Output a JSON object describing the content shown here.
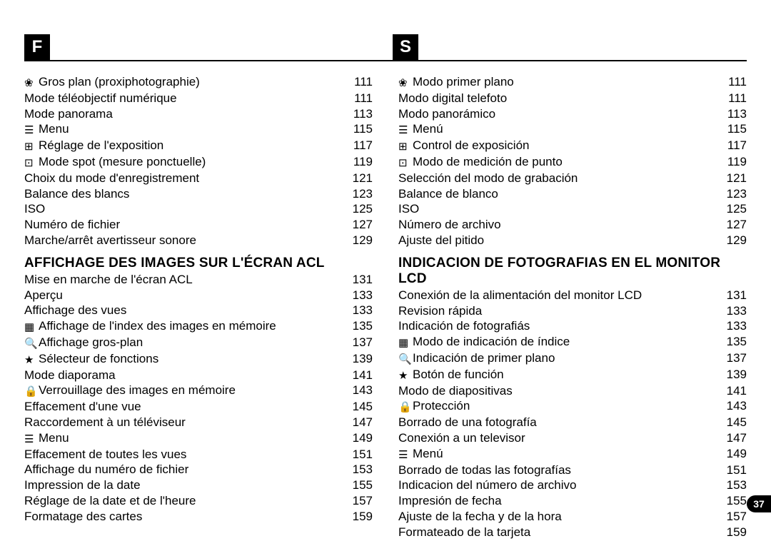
{
  "page_number": "37",
  "icon_glyphs": {
    "macro": "❀",
    "menu": "☰",
    "exposure": "⊞",
    "spot": "⊡",
    "index": "▦",
    "closeup": "🔍",
    "function": "★",
    "lock": "🔒"
  },
  "columns": [
    {
      "badge": "F",
      "sections": [
        {
          "heading": null,
          "items": [
            {
              "icon": "macro",
              "text": "Gros plan (proxiphotographie)",
              "page": "111"
            },
            {
              "icon": null,
              "text": "Mode téléobjectif numérique",
              "page": "111"
            },
            {
              "icon": null,
              "text": "Mode panorama",
              "page": "113"
            },
            {
              "icon": "menu",
              "text": "Menu",
              "page": "115"
            },
            {
              "icon": "exposure",
              "text": "Réglage de l'exposition",
              "page": "117"
            },
            {
              "icon": "spot",
              "text": "Mode spot (mesure ponctuelle)",
              "page": "119"
            },
            {
              "icon": null,
              "text": "Choix du mode d'enregistrement",
              "page": "121"
            },
            {
              "icon": null,
              "text": "Balance des blancs",
              "page": "123"
            },
            {
              "icon": null,
              "text": "ISO",
              "page": "125"
            },
            {
              "icon": null,
              "text": "Numéro de fichier",
              "page": "127"
            },
            {
              "icon": null,
              "text": "Marche/arrêt avertisseur sonore",
              "page": "129"
            }
          ]
        },
        {
          "heading": "AFFICHAGE DES IMAGES SUR L'ÉCRAN ACL",
          "items": [
            {
              "icon": null,
              "text": "Mise en marche de l'écran ACL",
              "page": "131"
            },
            {
              "icon": null,
              "text": "Aperçu",
              "page": "133"
            },
            {
              "icon": null,
              "text": "Affichage des vues",
              "page": "133"
            },
            {
              "icon": "index",
              "text": "Affichage de l'index des images en mémoire",
              "page": "135"
            },
            {
              "icon": "closeup",
              "text": "Affichage gros-plan",
              "page": "137"
            },
            {
              "icon": "function",
              "text": "Sélecteur de fonctions",
              "page": "139"
            },
            {
              "icon": null,
              "text": "Mode diaporama",
              "page": "141"
            },
            {
              "icon": "lock",
              "text": "Verrouillage des images en mémoire",
              "page": "143"
            },
            {
              "icon": null,
              "text": "Effacement d'une vue",
              "page": "145"
            },
            {
              "icon": null,
              "text": "Raccordement à un téléviseur",
              "page": "147"
            },
            {
              "icon": "menu",
              "text": "Menu",
              "page": "149"
            },
            {
              "icon": null,
              "text": "Effacement de toutes les vues",
              "page": "151"
            },
            {
              "icon": null,
              "text": "Affichage du numéro de fichier",
              "page": "153"
            },
            {
              "icon": null,
              "text": "Impression de la date",
              "page": "155"
            },
            {
              "icon": null,
              "text": "Réglage de la date et de l'heure",
              "page": "157"
            },
            {
              "icon": null,
              "text": "Formatage des cartes",
              "page": "159"
            }
          ]
        }
      ]
    },
    {
      "badge": "S",
      "sections": [
        {
          "heading": null,
          "items": [
            {
              "icon": "macro",
              "text": "Modo primer plano",
              "page": "111"
            },
            {
              "icon": null,
              "text": "Modo digital telefoto",
              "page": "111"
            },
            {
              "icon": null,
              "text": "Modo panorámico",
              "page": "113"
            },
            {
              "icon": "menu",
              "text": "Menú",
              "page": "115"
            },
            {
              "icon": "exposure",
              "text": "Control de exposición",
              "page": "117"
            },
            {
              "icon": "spot",
              "text": "Modo de medición de punto",
              "page": "119"
            },
            {
              "icon": null,
              "text": "Selección del modo de grabación",
              "page": "121"
            },
            {
              "icon": null,
              "text": "Balance de blanco",
              "page": "123"
            },
            {
              "icon": null,
              "text": "ISO",
              "page": "125"
            },
            {
              "icon": null,
              "text": "Número de archivo",
              "page": "127"
            },
            {
              "icon": null,
              "text": "Ajuste del pitido",
              "page": "129"
            }
          ]
        },
        {
          "heading": "INDICACION DE FOTOGRAFIAS EN EL MONITOR LCD",
          "items": [
            {
              "icon": null,
              "text": "Conexión de la alimentación del monitor LCD",
              "page": "131"
            },
            {
              "icon": null,
              "text": "Revision rápida",
              "page": "133"
            },
            {
              "icon": null,
              "text": "Indicación de fotografiás",
              "page": "133"
            },
            {
              "icon": "index",
              "text": "Modo de indicación de índice",
              "page": "135"
            },
            {
              "icon": "closeup",
              "text": "Indicación de primer plano",
              "page": "137"
            },
            {
              "icon": "function",
              "text": "Botón de función",
              "page": "139"
            },
            {
              "icon": null,
              "text": "Modo de diapositivas",
              "page": "141"
            },
            {
              "icon": "lock",
              "text": "Protección",
              "page": "143"
            },
            {
              "icon": null,
              "text": "Borrado de una fotografía",
              "page": "145"
            },
            {
              "icon": null,
              "text": "Conexión a un televisor",
              "page": "147"
            },
            {
              "icon": "menu",
              "text": "Menú",
              "page": "149"
            },
            {
              "icon": null,
              "text": "Borrado de todas las fotografías",
              "page": "151"
            },
            {
              "icon": null,
              "text": "Indicacion del número de archivo",
              "page": "153"
            },
            {
              "icon": null,
              "text": "Impresión de fecha",
              "page": "155"
            },
            {
              "icon": null,
              "text": "Ajuste de la fecha y de la hora",
              "page": "157"
            },
            {
              "icon": null,
              "text": "Formateado de la tarjeta",
              "page": "159"
            }
          ]
        }
      ]
    }
  ]
}
